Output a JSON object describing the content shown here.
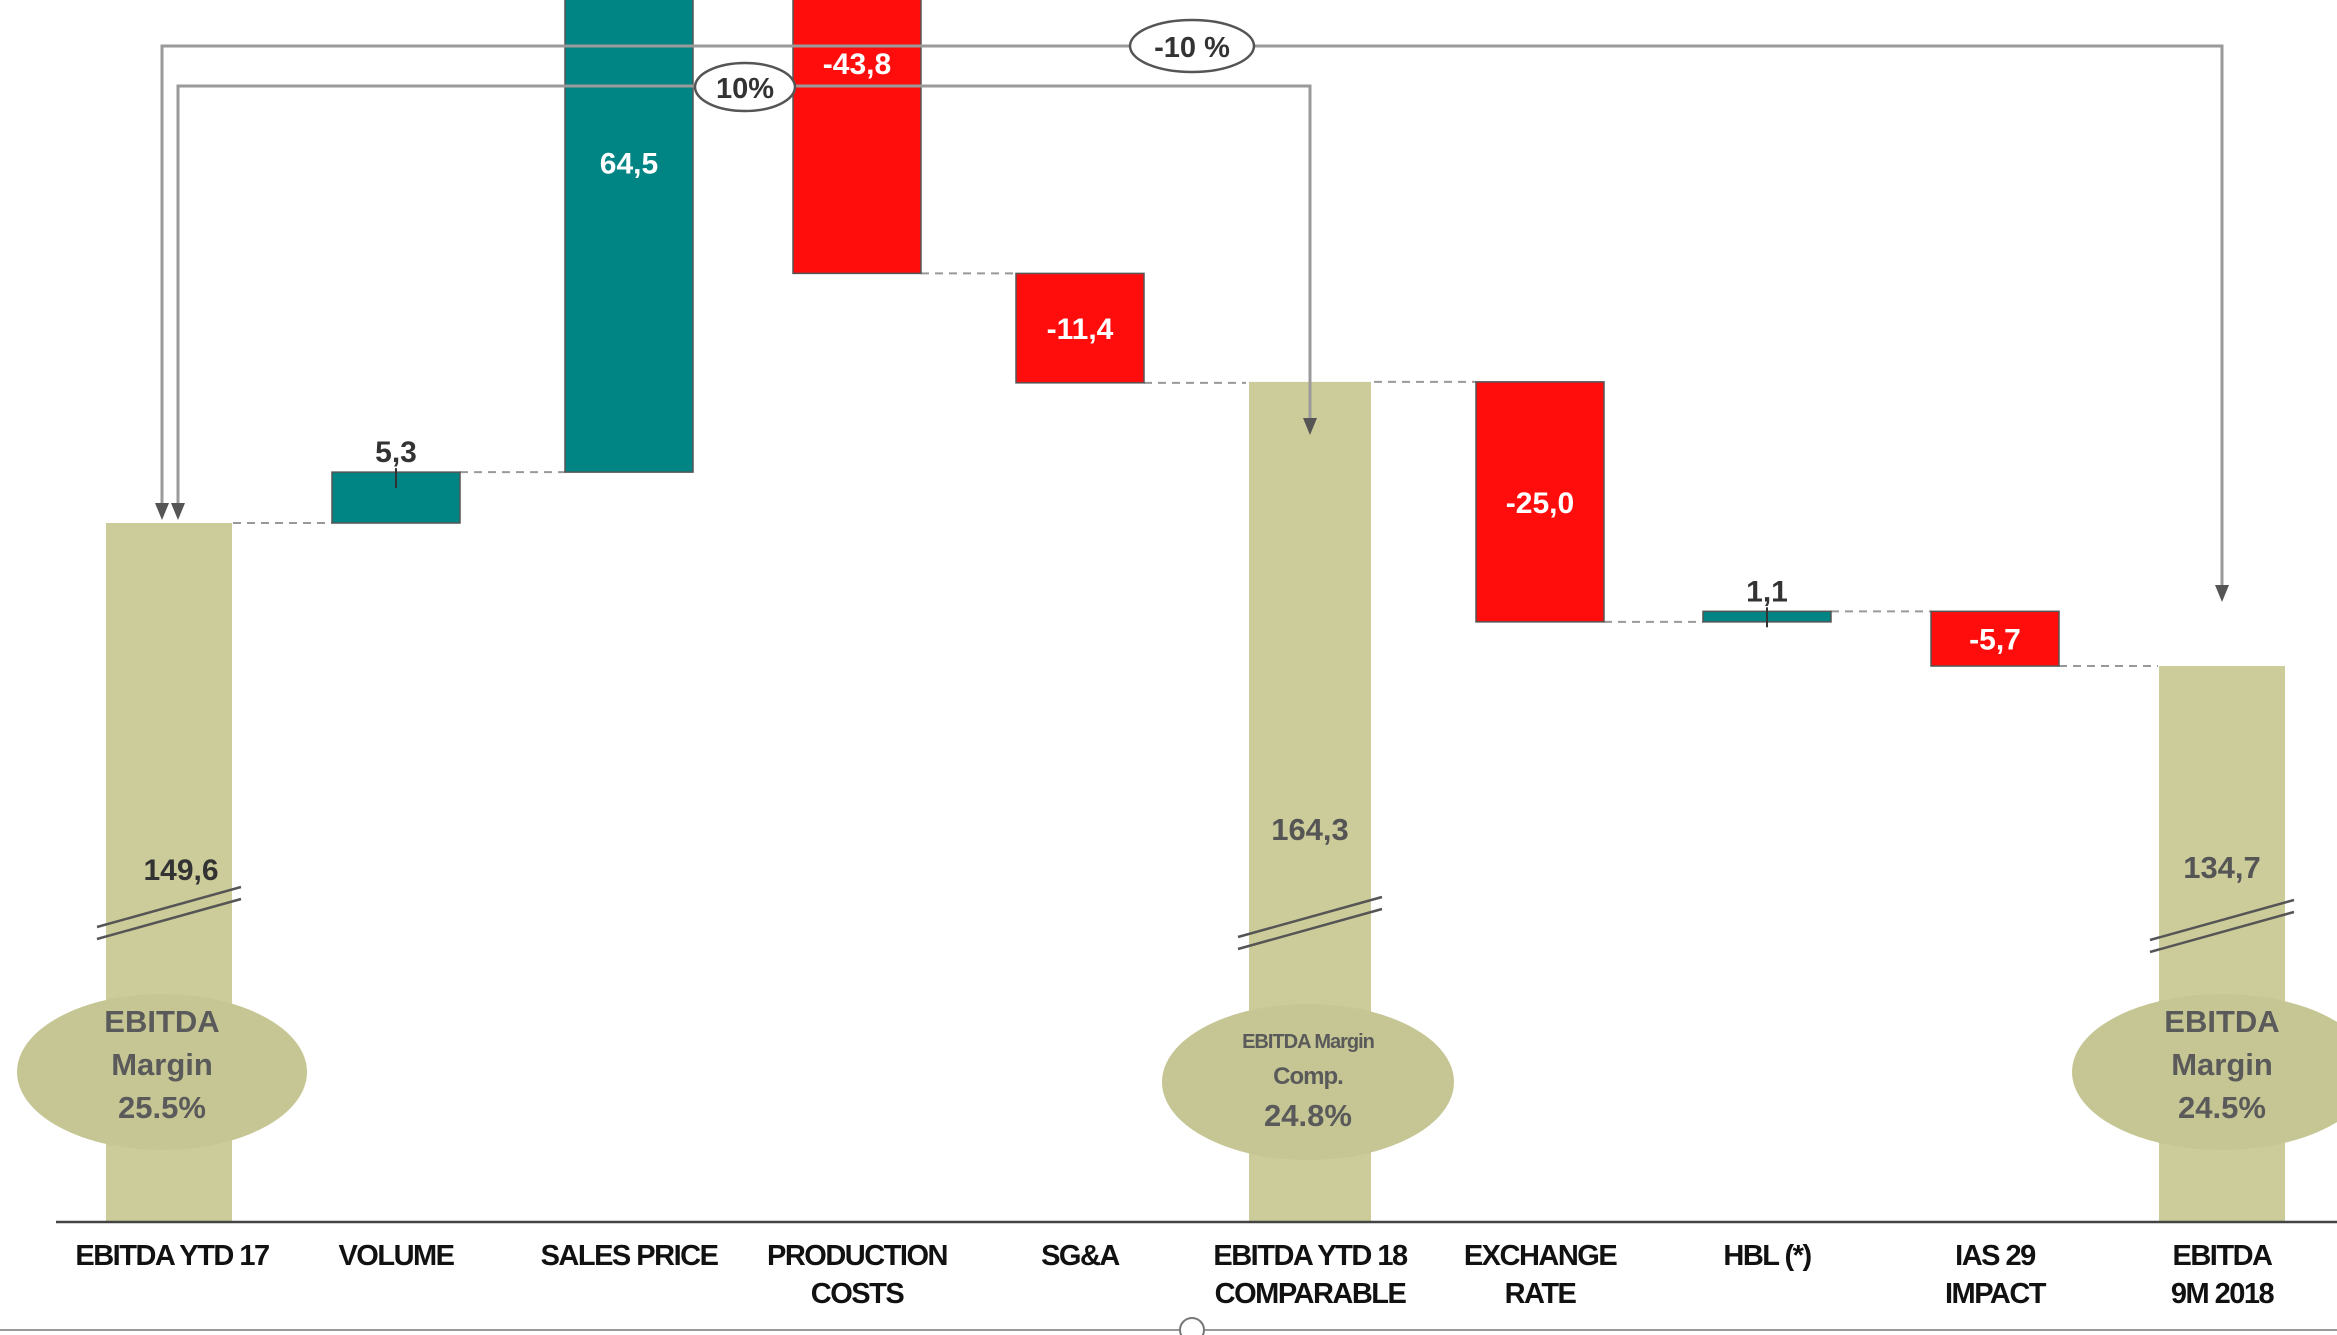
{
  "chart_data": {
    "type": "waterfall",
    "categories": [
      "EBITDA YTD 17",
      "VOLUME",
      "SALES PRICE",
      "PRODUCTION COSTS",
      "SG&A",
      "EBITDA YTD 18 COMPARABLE",
      "EXCHANGE RATE",
      "HBL (*)",
      "IAS 29 IMPACT",
      "EBITDA 9M 2018"
    ],
    "category_lines": [
      [
        "EBITDA YTD 17"
      ],
      [
        "VOLUME"
      ],
      [
        "SALES PRICE"
      ],
      [
        "PRODUCTION",
        "COSTS"
      ],
      [
        "SG&A"
      ],
      [
        "EBITDA YTD 18",
        "COMPARABLE"
      ],
      [
        "EXCHANGE",
        "RATE"
      ],
      [
        "HBL (*)"
      ],
      [
        "IAS 29",
        "IMPACT"
      ],
      [
        "EBITDA",
        "9M 2018"
      ]
    ],
    "steps": [
      {
        "kind": "total",
        "value": 149.6,
        "label": "149,6"
      },
      {
        "kind": "delta",
        "value": 5.3,
        "label": "5,3"
      },
      {
        "kind": "delta",
        "value": 64.5,
        "label": "64,5"
      },
      {
        "kind": "delta",
        "value": -43.8,
        "label": "-43,8"
      },
      {
        "kind": "delta",
        "value": -11.4,
        "label": "-11,4"
      },
      {
        "kind": "total",
        "value": 164.3,
        "label": "164,3"
      },
      {
        "kind": "delta",
        "value": -25.0,
        "label": "-25,0"
      },
      {
        "kind": "delta",
        "value": 1.1,
        "label": "1,1"
      },
      {
        "kind": "delta",
        "value": -5.7,
        "label": "-5,7"
      },
      {
        "kind": "total",
        "value": 134.7,
        "label": "134,7"
      }
    ],
    "margins": [
      {
        "at": "EBITDA YTD 17",
        "lines": [
          "EBITDA",
          "Margin",
          "25.5%"
        ]
      },
      {
        "at": "EBITDA YTD 18 COMPARABLE",
        "lines": [
          "EBITDA Margin",
          "Comp.",
          "24.8%"
        ]
      },
      {
        "at": "EBITDA 9M 2018",
        "lines": [
          "EBITDA",
          "Margin",
          "24.5%"
        ]
      }
    ],
    "comparisons": [
      {
        "from": "EBITDA YTD 17",
        "to": "EBITDA 9M 2018",
        "label": "-10 %"
      },
      {
        "from": "EBITDA YTD 17",
        "to": "EBITDA YTD 18 COMPARABLE",
        "label": "10%"
      }
    ],
    "axis_break": true,
    "colors": {
      "total": "#cccc9a",
      "positive": "#008584",
      "negative": "#ff0d0d",
      "ellipse": "#c6c695",
      "connector": "#999999",
      "bracket": "#9a9a9a"
    }
  }
}
